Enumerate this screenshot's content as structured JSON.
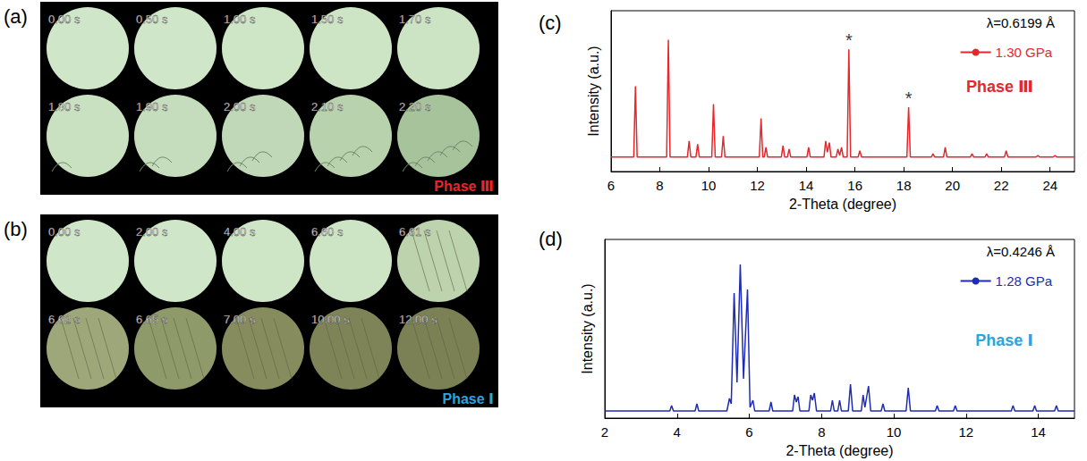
{
  "panels": [
    {
      "label": "(a)",
      "frames": [
        "0.00 s",
        "0.50 s",
        "1.00 s",
        "1.50 s",
        "1.70 s",
        "1.80 s",
        "1.90 s",
        "2.00 s",
        "2.10 s",
        "2.20 s"
      ],
      "phase": {
        "text": "Phase Ⅲ",
        "color": "#e8262b"
      }
    },
    {
      "label": "(b)",
      "frames": [
        "0.00 s",
        "2.00 s",
        "4.00 s",
        "6.60 s",
        "6.61 s",
        "6.62 s",
        "6.65 s",
        "7.00 s",
        "10.00 s",
        "12.00 s"
      ],
      "phase": {
        "text": "Phase Ⅰ",
        "color": "#2ba4e0"
      }
    }
  ],
  "chart_data": [
    {
      "label": "(c)",
      "type": "line",
      "xlabel": "2-Theta (degree)",
      "ylabel": "Intensity (a.u.)",
      "wavelength": "λ=0.6199 Å",
      "phase": {
        "text": "Phase Ⅲ",
        "color": "#e8262b"
      },
      "x": [
        6,
        6.93,
        7.0,
        7.07,
        8.28,
        8.35,
        8.42,
        9.13,
        9.2,
        9.27,
        9.48,
        9.55,
        9.62,
        10.13,
        10.2,
        10.27,
        10.53,
        10.6,
        10.67,
        12.08,
        12.15,
        12.22,
        12.28,
        12.35,
        12.42,
        12.98,
        13.05,
        13.12,
        13.23,
        13.3,
        13.37,
        14.03,
        14.1,
        14.17,
        14.73,
        14.8,
        14.87,
        14.95,
        15.02,
        15.23,
        15.3,
        15.37,
        15.45,
        15.52,
        15.68,
        15.75,
        15.82,
        16.13,
        16.2,
        16.27,
        18.13,
        18.2,
        18.27,
        19.13,
        19.2,
        19.27,
        19.63,
        19.7,
        19.77,
        20.73,
        20.8,
        20.87,
        21.33,
        21.4,
        21.47,
        22.13,
        22.2,
        22.27,
        23.43,
        23.5,
        23.57,
        24.13,
        24.2,
        24.27,
        25
      ],
      "series": [
        {
          "name": "1.30 GPa",
          "color": "#e8262b",
          "values": [
            9,
            9,
            53,
            9,
            9,
            82,
            9,
            9,
            19,
            9,
            9,
            17,
            9,
            9,
            42,
            9,
            9,
            22,
            9,
            9,
            33,
            9,
            9,
            15,
            9,
            9,
            16,
            9,
            9,
            14,
            9,
            9,
            15,
            9,
            9,
            19,
            12,
            18,
            9,
            9,
            14,
            10,
            15,
            9,
            9,
            76,
            9,
            9,
            13,
            9,
            9,
            40,
            9,
            9,
            11,
            9,
            9,
            15,
            9,
            9,
            11,
            9,
            9,
            11,
            9,
            9,
            13,
            9,
            9,
            10,
            9,
            9,
            10,
            9,
            9
          ]
        }
      ],
      "markers": [
        {
          "text": "*",
          "x": 15.75,
          "y": 76
        },
        {
          "text": "*",
          "x": 18.2,
          "y": 40
        }
      ],
      "xlim": [
        6,
        25
      ],
      "xticks": [
        6,
        8,
        10,
        12,
        14,
        16,
        18,
        20,
        22,
        24
      ],
      "ylim": [
        0,
        100
      ],
      "yticks": [],
      "tick_labels": "x",
      "legend": "upper right"
    },
    {
      "label": "(d)",
      "type": "line",
      "xlabel": "2-Theta (degree)",
      "ylabel": "Intensity (a.u.)",
      "wavelength": "λ=0.4246 Å",
      "phase": {
        "text": "Phase Ⅰ",
        "color": "#2ba4e0"
      },
      "x": [
        2,
        3.8,
        3.85,
        3.9,
        4.5,
        4.55,
        4.6,
        5.38,
        5.45,
        5.5,
        5.58,
        5.66,
        5.75,
        5.84,
        5.95,
        6.02,
        6.1,
        6.15,
        6.55,
        6.6,
        6.65,
        7.2,
        7.25,
        7.3,
        7.35,
        7.4,
        7.65,
        7.7,
        7.75,
        7.8,
        7.86,
        8.25,
        8.3,
        8.35,
        8.45,
        8.5,
        8.55,
        8.74,
        8.8,
        8.86,
        9.1,
        9.15,
        9.2,
        9.3,
        9.36,
        9.65,
        9.7,
        9.75,
        10.34,
        10.4,
        10.46,
        11.15,
        11.2,
        11.25,
        11.65,
        11.7,
        11.75,
        13.25,
        13.3,
        13.35,
        13.85,
        13.9,
        13.95,
        14.45,
        14.5,
        14.55,
        15
      ],
      "series": [
        {
          "name": "1.28 GPa",
          "color": "#1f2bb5",
          "values": [
            4,
            4,
            7,
            4,
            4,
            8,
            4,
            4,
            11,
            8,
            70,
            20,
            86,
            22,
            72,
            6,
            10,
            4,
            4,
            9,
            4,
            4,
            13,
            9,
            12,
            4,
            4,
            13,
            10,
            14,
            4,
            4,
            10,
            4,
            4,
            10,
            4,
            4,
            19,
            4,
            4,
            13,
            6,
            18,
            4,
            4,
            8,
            4,
            4,
            17,
            4,
            4,
            7,
            4,
            4,
            7,
            4,
            4,
            7,
            4,
            4,
            7,
            4,
            4,
            7,
            4,
            4
          ]
        }
      ],
      "markers": [],
      "xlim": [
        2,
        15
      ],
      "xticks": [
        2,
        4,
        6,
        8,
        10,
        12,
        14
      ],
      "ylim": [
        0,
        100
      ],
      "yticks": [],
      "tick_labels": "x",
      "legend": "upper right"
    }
  ]
}
